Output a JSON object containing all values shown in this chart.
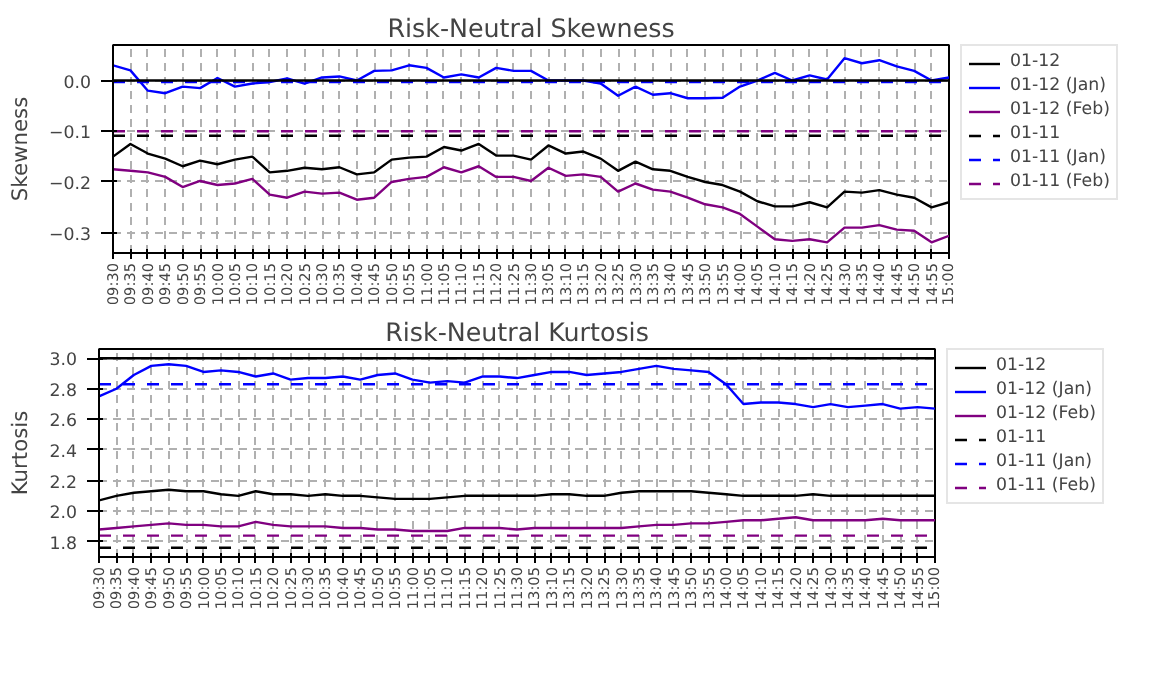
{
  "chart_data": [
    {
      "type": "line",
      "title": "Risk-Neutral Skewness",
      "ylabel": "Skewness",
      "categories": [
        "09:30",
        "09:35",
        "09:40",
        "09:45",
        "09:50",
        "09:55",
        "10:00",
        "10:05",
        "10:10",
        "10:15",
        "10:20",
        "10:25",
        "10:30",
        "10:35",
        "10:40",
        "10:45",
        "10:50",
        "10:55",
        "11:00",
        "11:05",
        "11:10",
        "11:15",
        "11:20",
        "11:25",
        "11:30",
        "13:05",
        "13:10",
        "13:15",
        "13:20",
        "13:25",
        "13:30",
        "13:35",
        "13:40",
        "13:45",
        "13:50",
        "13:55",
        "14:00",
        "14:05",
        "14:10",
        "14:15",
        "14:20",
        "14:25",
        "14:30",
        "14:35",
        "14:40",
        "14:45",
        "14:50",
        "14:55",
        "15:00"
      ],
      "ylim": [
        -0.34,
        0.07
      ],
      "yticks": [
        {
          "value": 0.0,
          "label": "0.0"
        },
        {
          "value": -0.1,
          "label": "−0.1"
        },
        {
          "value": -0.2,
          "label": "−0.2"
        },
        {
          "value": -0.3,
          "label": "−0.3"
        }
      ],
      "grid": true,
      "legend": "right",
      "ref_lines": [
        {
          "axis": "y",
          "value": 0.0,
          "color": "#000000",
          "line_style": "solid"
        }
      ],
      "series": [
        {
          "name": "01-12",
          "color": "#000000",
          "line_style": "solid",
          "values": [
            -0.15,
            -0.125,
            -0.144,
            -0.154,
            -0.169,
            -0.158,
            -0.165,
            -0.156,
            -0.15,
            -0.181,
            -0.178,
            -0.172,
            -0.175,
            -0.171,
            -0.185,
            -0.181,
            -0.156,
            -0.152,
            -0.15,
            -0.131,
            -0.138,
            -0.125,
            -0.148,
            -0.148,
            -0.156,
            -0.128,
            -0.144,
            -0.14,
            -0.154,
            -0.178,
            -0.16,
            -0.175,
            -0.178,
            -0.19,
            -0.2,
            -0.206,
            -0.219,
            -0.238,
            -0.248,
            -0.248,
            -0.24,
            -0.25,
            -0.219,
            -0.221,
            -0.216,
            -0.225,
            -0.231,
            -0.25,
            -0.24
          ]
        },
        {
          "name": "01-12 (Jan)",
          "color": "#0000ff",
          "line_style": "solid",
          "values": [
            0.03,
            0.02,
            -0.02,
            -0.025,
            -0.012,
            -0.015,
            0.005,
            -0.012,
            -0.006,
            -0.003,
            0.004,
            -0.006,
            0.006,
            0.008,
            0.0,
            0.019,
            0.02,
            0.03,
            0.025,
            0.006,
            0.012,
            0.006,
            0.025,
            0.019,
            0.019,
            0.0,
            0.0,
            0.0,
            -0.006,
            -0.03,
            -0.012,
            -0.028,
            -0.025,
            -0.035,
            -0.035,
            -0.034,
            -0.012,
            0.0,
            0.015,
            0.0,
            0.01,
            0.002,
            0.044,
            0.034,
            0.04,
            0.028,
            0.019,
            0.0,
            0.006
          ]
        },
        {
          "name": "01-12 (Feb)",
          "color": "#800080",
          "line_style": "solid",
          "values": [
            -0.175,
            -0.178,
            -0.181,
            -0.19,
            -0.21,
            -0.198,
            -0.206,
            -0.203,
            -0.194,
            -0.225,
            -0.231,
            -0.219,
            -0.223,
            -0.221,
            -0.235,
            -0.231,
            -0.2,
            -0.194,
            -0.19,
            -0.171,
            -0.181,
            -0.169,
            -0.19,
            -0.19,
            -0.198,
            -0.172,
            -0.188,
            -0.185,
            -0.19,
            -0.219,
            -0.203,
            -0.215,
            -0.219,
            -0.231,
            -0.244,
            -0.25,
            -0.263,
            -0.288,
            -0.313,
            -0.316,
            -0.313,
            -0.319,
            -0.29,
            -0.29,
            -0.285,
            -0.294,
            -0.296,
            -0.319,
            -0.306
          ]
        },
        {
          "name": "01-11",
          "color": "#000000",
          "line_style": "dashed",
          "values": [
            -0.109,
            -0.109,
            -0.109,
            -0.109,
            -0.109,
            -0.109,
            -0.109,
            -0.109,
            -0.109,
            -0.109,
            -0.109,
            -0.109,
            -0.109,
            -0.109,
            -0.109,
            -0.109,
            -0.109,
            -0.109,
            -0.109,
            -0.109,
            -0.109,
            -0.109,
            -0.109,
            -0.109,
            -0.109,
            -0.109,
            -0.109,
            -0.109,
            -0.109,
            -0.109,
            -0.109,
            -0.109,
            -0.109,
            -0.109,
            -0.109,
            -0.109,
            -0.109,
            -0.109,
            -0.109,
            -0.109,
            -0.109,
            -0.109,
            -0.109,
            -0.109,
            -0.109,
            -0.109,
            -0.109,
            -0.109,
            -0.109
          ]
        },
        {
          "name": "01-11 (Jan)",
          "color": "#0000ff",
          "line_style": "dashed",
          "values": [
            -0.003,
            -0.003,
            -0.003,
            -0.003,
            -0.003,
            -0.003,
            -0.003,
            -0.003,
            -0.003,
            -0.003,
            -0.003,
            -0.003,
            -0.003,
            -0.003,
            -0.003,
            -0.003,
            -0.003,
            -0.003,
            -0.003,
            -0.003,
            -0.003,
            -0.003,
            -0.003,
            -0.003,
            -0.003,
            -0.003,
            -0.003,
            -0.003,
            -0.003,
            -0.003,
            -0.003,
            -0.003,
            -0.003,
            -0.003,
            -0.003,
            -0.003,
            -0.003,
            -0.003,
            -0.003,
            -0.003,
            -0.003,
            -0.003,
            -0.003,
            -0.003,
            -0.003,
            -0.003,
            -0.003,
            -0.003,
            -0.003
          ]
        },
        {
          "name": "01-11 (Feb)",
          "color": "#800080",
          "line_style": "dashed",
          "values": [
            -0.1,
            -0.1,
            -0.1,
            -0.1,
            -0.1,
            -0.1,
            -0.1,
            -0.1,
            -0.1,
            -0.1,
            -0.1,
            -0.1,
            -0.1,
            -0.1,
            -0.1,
            -0.1,
            -0.1,
            -0.1,
            -0.1,
            -0.1,
            -0.1,
            -0.1,
            -0.1,
            -0.1,
            -0.1,
            -0.1,
            -0.1,
            -0.1,
            -0.1,
            -0.1,
            -0.1,
            -0.1,
            -0.1,
            -0.1,
            -0.1,
            -0.1,
            -0.1,
            -0.1,
            -0.1,
            -0.1,
            -0.1,
            -0.1,
            -0.1,
            -0.1,
            -0.1,
            -0.1,
            -0.1,
            -0.1,
            -0.1
          ]
        }
      ]
    },
    {
      "type": "line",
      "title": "Risk-Neutral Kurtosis",
      "ylabel": "Kurtosis",
      "categories": [
        "09:30",
        "09:35",
        "09:40",
        "09:45",
        "09:50",
        "09:55",
        "10:00",
        "10:05",
        "10:10",
        "10:15",
        "10:20",
        "10:25",
        "10:30",
        "10:35",
        "10:40",
        "10:45",
        "10:50",
        "10:55",
        "11:00",
        "11:05",
        "11:10",
        "11:15",
        "11:20",
        "11:25",
        "11:30",
        "13:05",
        "13:10",
        "13:15",
        "13:20",
        "13:25",
        "13:30",
        "13:35",
        "13:40",
        "13:45",
        "13:50",
        "13:55",
        "14:00",
        "14:05",
        "14:10",
        "14:15",
        "14:20",
        "14:25",
        "14:30",
        "14:35",
        "14:40",
        "14:45",
        "14:50",
        "14:55",
        "15:00"
      ],
      "ylim": [
        1.7,
        3.06
      ],
      "yticks": [
        {
          "value": 1.8,
          "label": "1.8"
        },
        {
          "value": 2.0,
          "label": "2.0"
        },
        {
          "value": 2.2,
          "label": "2.2"
        },
        {
          "value": 2.4,
          "label": "2.4"
        },
        {
          "value": 2.6,
          "label": "2.6"
        },
        {
          "value": 2.8,
          "label": "2.8"
        },
        {
          "value": 3.0,
          "label": "3.0"
        }
      ],
      "grid": true,
      "legend": "right",
      "ref_lines": [
        {
          "axis": "y",
          "value": 3.0,
          "color": "#000000",
          "line_style": "solid"
        }
      ],
      "series": [
        {
          "name": "01-12",
          "color": "#000000",
          "line_style": "solid",
          "values": [
            2.07,
            2.1,
            2.12,
            2.13,
            2.14,
            2.13,
            2.13,
            2.11,
            2.1,
            2.13,
            2.11,
            2.11,
            2.1,
            2.11,
            2.1,
            2.1,
            2.09,
            2.08,
            2.08,
            2.08,
            2.09,
            2.1,
            2.1,
            2.1,
            2.1,
            2.1,
            2.11,
            2.11,
            2.1,
            2.1,
            2.12,
            2.13,
            2.13,
            2.13,
            2.13,
            2.12,
            2.11,
            2.1,
            2.1,
            2.1,
            2.1,
            2.11,
            2.1,
            2.1,
            2.1,
            2.1,
            2.1,
            2.1,
            2.1
          ]
        },
        {
          "name": "01-12 (Jan)",
          "color": "#0000ff",
          "line_style": "solid",
          "values": [
            2.75,
            2.8,
            2.89,
            2.95,
            2.96,
            2.95,
            2.91,
            2.92,
            2.91,
            2.88,
            2.9,
            2.86,
            2.87,
            2.87,
            2.88,
            2.86,
            2.89,
            2.9,
            2.86,
            2.84,
            2.85,
            2.84,
            2.88,
            2.88,
            2.87,
            2.89,
            2.91,
            2.91,
            2.89,
            2.9,
            2.91,
            2.93,
            2.95,
            2.93,
            2.92,
            2.91,
            2.83,
            2.7,
            2.71,
            2.71,
            2.7,
            2.68,
            2.7,
            2.68,
            2.69,
            2.7,
            2.67,
            2.68,
            2.67
          ]
        },
        {
          "name": "01-12 (Feb)",
          "color": "#800080",
          "line_style": "solid",
          "values": [
            1.88,
            1.89,
            1.9,
            1.91,
            1.92,
            1.91,
            1.91,
            1.9,
            1.9,
            1.93,
            1.91,
            1.9,
            1.9,
            1.9,
            1.89,
            1.89,
            1.88,
            1.88,
            1.87,
            1.87,
            1.87,
            1.89,
            1.89,
            1.89,
            1.88,
            1.89,
            1.89,
            1.89,
            1.89,
            1.89,
            1.89,
            1.9,
            1.91,
            1.91,
            1.92,
            1.92,
            1.93,
            1.94,
            1.94,
            1.95,
            1.96,
            1.94,
            1.94,
            1.94,
            1.94,
            1.95,
            1.94,
            1.94,
            1.94
          ]
        },
        {
          "name": "01-11",
          "color": "#000000",
          "line_style": "dashed",
          "values": [
            1.76,
            1.76,
            1.76,
            1.76,
            1.76,
            1.76,
            1.76,
            1.76,
            1.76,
            1.76,
            1.76,
            1.76,
            1.76,
            1.76,
            1.76,
            1.76,
            1.76,
            1.76,
            1.76,
            1.76,
            1.76,
            1.76,
            1.76,
            1.76,
            1.76,
            1.76,
            1.76,
            1.76,
            1.76,
            1.76,
            1.76,
            1.76,
            1.76,
            1.76,
            1.76,
            1.76,
            1.76,
            1.76,
            1.76,
            1.76,
            1.76,
            1.76,
            1.76,
            1.76,
            1.76,
            1.76,
            1.76,
            1.76,
            1.76
          ]
        },
        {
          "name": "01-11 (Jan)",
          "color": "#0000ff",
          "line_style": "dashed",
          "values": [
            2.83,
            2.83,
            2.83,
            2.83,
            2.83,
            2.83,
            2.83,
            2.83,
            2.83,
            2.83,
            2.83,
            2.83,
            2.83,
            2.83,
            2.83,
            2.83,
            2.83,
            2.83,
            2.83,
            2.83,
            2.83,
            2.83,
            2.83,
            2.83,
            2.83,
            2.83,
            2.83,
            2.83,
            2.83,
            2.83,
            2.83,
            2.83,
            2.83,
            2.83,
            2.83,
            2.83,
            2.83,
            2.83,
            2.83,
            2.83,
            2.83,
            2.83,
            2.83,
            2.83,
            2.83,
            2.83,
            2.83,
            2.83,
            2.83
          ]
        },
        {
          "name": "01-11 (Feb)",
          "color": "#800080",
          "line_style": "dashed",
          "values": [
            1.84,
            1.84,
            1.84,
            1.84,
            1.84,
            1.84,
            1.84,
            1.84,
            1.84,
            1.84,
            1.84,
            1.84,
            1.84,
            1.84,
            1.84,
            1.84,
            1.84,
            1.84,
            1.84,
            1.84,
            1.84,
            1.84,
            1.84,
            1.84,
            1.84,
            1.84,
            1.84,
            1.84,
            1.84,
            1.84,
            1.84,
            1.84,
            1.84,
            1.84,
            1.84,
            1.84,
            1.84,
            1.84,
            1.84,
            1.84,
            1.84,
            1.84,
            1.84,
            1.84,
            1.84,
            1.84,
            1.84,
            1.84,
            1.84
          ]
        }
      ]
    }
  ]
}
